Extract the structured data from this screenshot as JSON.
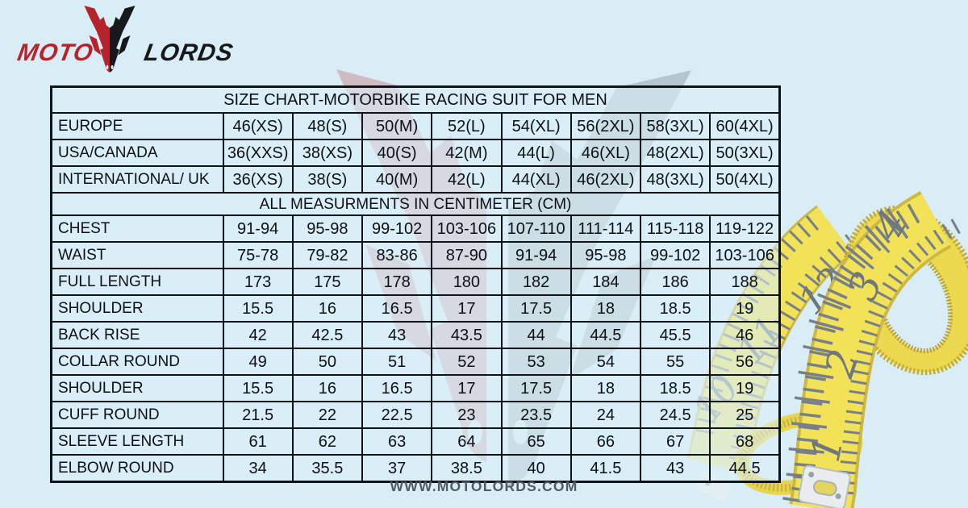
{
  "logo": {
    "moto": "MOTO",
    "lords": "LORDS"
  },
  "table": {
    "title": "SIZE CHART-MOTORBIKE RACING SUIT FOR MEN",
    "size_rows": [
      {
        "label": "EUROPE",
        "cells": [
          "46(XS)",
          "48(S)",
          "50(M)",
          "52(L)",
          "54(XL)",
          "56(2XL)",
          "58(3XL)",
          "60(4XL)"
        ]
      },
      {
        "label": "USA/CANADA",
        "cells": [
          "36(XXS)",
          "38(XS)",
          "40(S)",
          "42(M)",
          "44(L)",
          "46(XL)",
          "48(2XL)",
          "50(3XL)"
        ]
      },
      {
        "label": "INTERNATIONAL/ UK",
        "cells": [
          "36(XS)",
          "38(S)",
          "40(M)",
          "42(L)",
          "44(XL)",
          "46(2XL)",
          "48(3XL)",
          "50(4XL)"
        ]
      }
    ],
    "section_header": "ALL MEASURMENTS IN CENTIMETER (CM)",
    "measurement_rows": [
      {
        "label": "CHEST",
        "cells": [
          "91-94",
          "95-98",
          "99-102",
          "103-106",
          "107-110",
          "111-114",
          "115-118",
          "119-122"
        ]
      },
      {
        "label": "WAIST",
        "cells": [
          "75-78",
          "79-82",
          "83-86",
          "87-90",
          "91-94",
          "95-98",
          "99-102",
          "103-106"
        ]
      },
      {
        "label": "FULL LENGTH",
        "cells": [
          "173",
          "175",
          "178",
          "180",
          "182",
          "184",
          "186",
          "188"
        ]
      },
      {
        "label": "SHOULDER",
        "cells": [
          "15.5",
          "16",
          "16.5",
          "17",
          "17.5",
          "18",
          "18.5",
          "19"
        ]
      },
      {
        "label": "BACK RISE",
        "cells": [
          "42",
          "42.5",
          "43",
          "43.5",
          "44",
          "44.5",
          "45.5",
          "46"
        ]
      },
      {
        "label": "COLLAR ROUND",
        "cells": [
          "49",
          "50",
          "51",
          "52",
          "53",
          "54",
          "55",
          "56"
        ]
      },
      {
        "label": "SHOULDER",
        "cells": [
          "15.5",
          "16",
          "16.5",
          "17",
          "17.5",
          "18",
          "18.5",
          "19"
        ]
      },
      {
        "label": "CUFF ROUND",
        "cells": [
          "21.5",
          "22",
          "22.5",
          "23",
          "23.5",
          "24",
          "24.5",
          "25"
        ]
      },
      {
        "label": "SLEEVE LENGTH",
        "cells": [
          "61",
          "62",
          "63",
          "64",
          "65",
          "66",
          "67",
          "68"
        ]
      },
      {
        "label": "ELBOW ROUND",
        "cells": [
          "34",
          "35.5",
          "37",
          "38.5",
          "40",
          "41.5",
          "43",
          "44.5"
        ]
      }
    ]
  },
  "decor": {
    "tape_numbers_free": [
      "4",
      "3",
      "2",
      "1"
    ],
    "tape_numbers_back": [
      "12",
      "11",
      "10"
    ]
  },
  "footer": {
    "website": "WWW.MOTOLORDS.COM"
  },
  "colors": {
    "background": "#d9edf6",
    "table_border": "#101418",
    "logo_red": "#b5242b",
    "logo_black": "#16181b",
    "tape_yellow": "#f1e257",
    "footer_text": "#4f5b64"
  }
}
